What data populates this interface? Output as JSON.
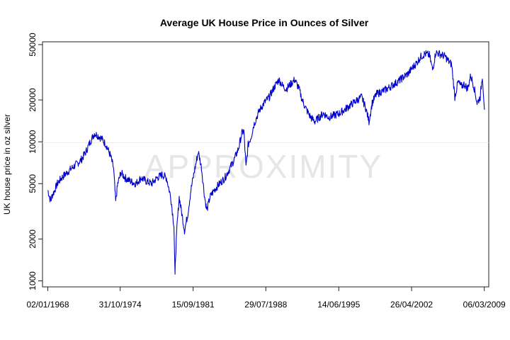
{
  "chart_data": {
    "type": "line",
    "title": "Average UK House Price in Ounces of Silver",
    "xlabel": "",
    "ylabel": "UK house price in oz silver",
    "yscale": "log",
    "ylim": [
      950,
      55000
    ],
    "xlim": [
      1967.5,
      2009.6
    ],
    "yticks": [
      1000,
      2000,
      5000,
      10000,
      20000,
      50000
    ],
    "ytick_labels": [
      "1000",
      "2000",
      "5000",
      "10000",
      "20000",
      "50000"
    ],
    "xticks": [
      1968.0,
      1974.83,
      1981.71,
      1988.57,
      1995.45,
      2002.32,
      2009.18
    ],
    "xtick_labels": [
      "02/01/1968",
      "31/10/1974",
      "15/09/1981",
      "29/07/1988",
      "14/06/1995",
      "26/04/2002",
      "06/03/2009"
    ],
    "watermark": "APPROXIMITY",
    "line_color": "#0000cc",
    "series": [
      {
        "name": "UK house price in oz silver",
        "x": [
          1968.0,
          1968.1,
          1968.2,
          1968.3,
          1968.4,
          1968.6,
          1968.9,
          1969.3,
          1969.8,
          1970.3,
          1970.8,
          1971.2,
          1971.6,
          1972.0,
          1972.4,
          1972.8,
          1973.1,
          1973.5,
          1973.9,
          1974.2,
          1974.4,
          1974.6,
          1974.9,
          1975.3,
          1975.8,
          1976.3,
          1976.8,
          1977.3,
          1977.8,
          1978.3,
          1978.8,
          1979.2,
          1979.6,
          1979.9,
          1980.0,
          1980.05,
          1980.2,
          1980.4,
          1980.6,
          1980.9,
          1981.2,
          1981.5,
          1981.8,
          1982.2,
          1982.5,
          1982.8,
          1983.0,
          1983.3,
          1983.7,
          1984.2,
          1984.7,
          1985.2,
          1985.6,
          1986.0,
          1986.3,
          1986.5,
          1986.7,
          1986.9,
          1987.2,
          1987.4,
          1987.7,
          1988.0,
          1988.4,
          1988.9,
          1989.4,
          1989.8,
          1990.2,
          1990.5,
          1990.9,
          1991.3,
          1991.7,
          1992.0,
          1992.4,
          1992.8,
          1993.2,
          1993.6,
          1994.0,
          1994.5,
          1995.0,
          1995.5,
          1996.0,
          1996.4,
          1996.8,
          1997.2,
          1997.6,
          1998.0,
          1998.3,
          1998.6,
          1999.0,
          1999.5,
          2000.0,
          2000.5,
          2001.0,
          2001.5,
          2002.0,
          2002.4,
          2002.8,
          2003.2,
          2003.6,
          2004.0,
          2004.3,
          2004.6,
          2004.9,
          2005.2,
          2005.5,
          2005.8,
          2006.1,
          2006.4,
          2006.7,
          2007.0,
          2007.3,
          2007.6,
          2007.9,
          2008.2,
          2008.5,
          2008.8,
          2009.0,
          2009.2
        ],
        "values": [
          4500,
          4200,
          3900,
          3800,
          4100,
          4400,
          5000,
          5500,
          6000,
          6500,
          7000,
          7500,
          8500,
          10000,
          11500,
          11000,
          10500,
          9500,
          8000,
          6500,
          3700,
          5000,
          6000,
          5500,
          5200,
          5000,
          5500,
          5200,
          5000,
          5500,
          5800,
          5500,
          4000,
          2500,
          1050,
          1500,
          2500,
          4000,
          3200,
          2300,
          3000,
          4500,
          6000,
          8500,
          6500,
          4000,
          3200,
          4000,
          4500,
          5000,
          5500,
          6500,
          7500,
          9000,
          11500,
          12000,
          6500,
          9500,
          11000,
          13000,
          15000,
          17000,
          19000,
          21000,
          25000,
          28000,
          25000,
          24000,
          26000,
          28000,
          24000,
          20000,
          17000,
          15000,
          14000,
          15000,
          16000,
          15000,
          15500,
          16000,
          17000,
          18000,
          19000,
          20000,
          21000,
          17500,
          14000,
          19000,
          22000,
          23000,
          24000,
          25500,
          27000,
          29000,
          31000,
          34000,
          37000,
          41000,
          43000,
          42000,
          33000,
          44000,
          43000,
          42000,
          41000,
          38000,
          36000,
          21000,
          27000,
          25000,
          26000,
          24000,
          30000,
          25000,
          19000,
          21000,
          30000,
          17000
        ]
      }
    ]
  }
}
